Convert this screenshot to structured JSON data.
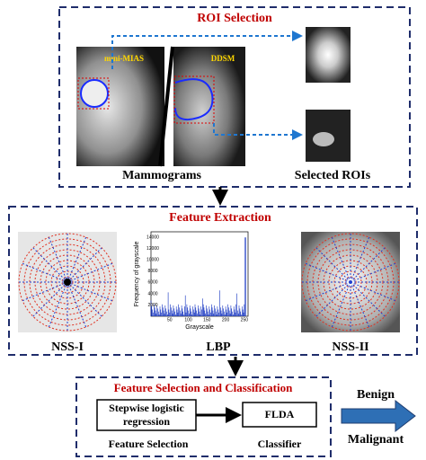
{
  "roi_selection": {
    "title": "ROI Selection",
    "images": [
      "mini-MIAS",
      "DDSM"
    ],
    "caption": "Mammograms",
    "output_caption": "Selected ROIs"
  },
  "feature_extraction": {
    "title": "Feature Extraction",
    "methods": [
      "NSS-I",
      "LBP",
      "NSS-II"
    ],
    "lbp_plot": {
      "y_label": "Frequency of grayscale",
      "x_label": "Grayscale",
      "xticks": [
        50,
        100,
        150,
        200,
        250
      ],
      "yticks": [
        2000,
        4000,
        6000,
        8000,
        10000,
        12000,
        14000
      ]
    }
  },
  "classification": {
    "title": "Feature Selection and Classification",
    "selection_step": [
      "Stepwise logistic",
      "regression"
    ],
    "selection_label": "Feature Selection",
    "classifier_step": "FLDA",
    "classifier_label": "Classifier",
    "outcomes": [
      "Benign",
      "Malignant"
    ]
  }
}
